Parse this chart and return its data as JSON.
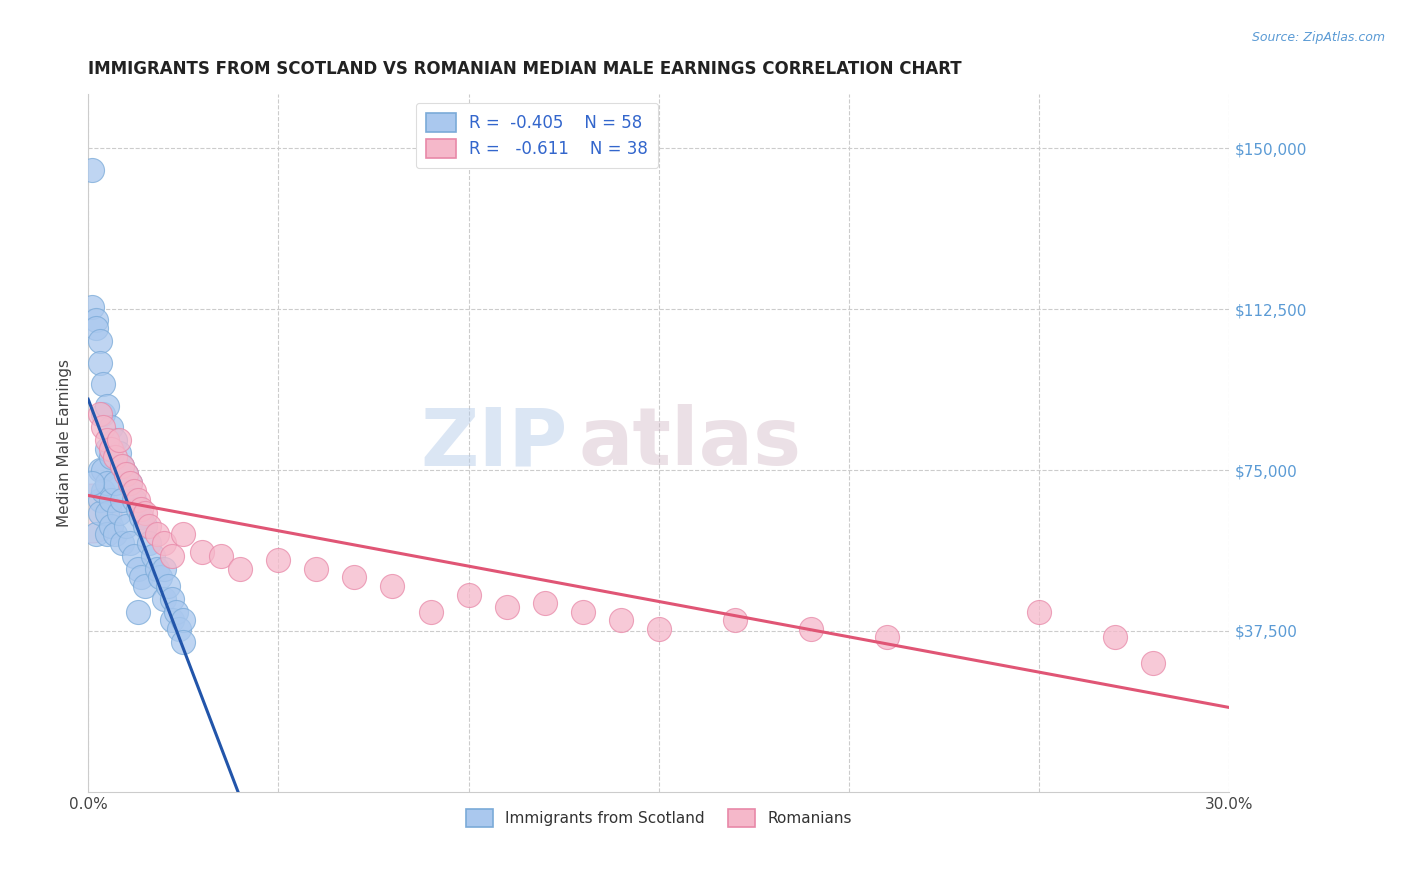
{
  "title": "IMMIGRANTS FROM SCOTLAND VS ROMANIAN MEDIAN MALE EARNINGS CORRELATION CHART",
  "source": "Source: ZipAtlas.com",
  "ylabel": "Median Male Earnings",
  "xlim": [
    0.0,
    0.3
  ],
  "ylim": [
    0,
    162500
  ],
  "yticks": [
    37500,
    75000,
    112500,
    150000
  ],
  "ytick_labels": [
    "$37,500",
    "$75,000",
    "$112,500",
    "$150,000"
  ],
  "xticks": [
    0.0,
    0.05,
    0.1,
    0.15,
    0.2,
    0.25,
    0.3
  ],
  "xtick_labels": [
    "0.0%",
    "",
    "",
    "",
    "",
    "",
    "30.0%"
  ],
  "grid_color": "#cccccc",
  "background_color": "#ffffff",
  "scotland_color": "#aac8ee",
  "scotland_edge_color": "#7aaad8",
  "romania_color": "#f5b8ca",
  "romania_edge_color": "#e888a8",
  "watermark_zip": "ZIP",
  "watermark_atlas": "atlas",
  "scotland_x": [
    0.001,
    0.001,
    0.002,
    0.002,
    0.002,
    0.003,
    0.003,
    0.003,
    0.003,
    0.003,
    0.004,
    0.004,
    0.004,
    0.004,
    0.005,
    0.005,
    0.005,
    0.005,
    0.005,
    0.006,
    0.006,
    0.006,
    0.006,
    0.007,
    0.007,
    0.007,
    0.008,
    0.008,
    0.009,
    0.009,
    0.009,
    0.01,
    0.01,
    0.011,
    0.011,
    0.012,
    0.012,
    0.013,
    0.013,
    0.014,
    0.014,
    0.015,
    0.015,
    0.016,
    0.017,
    0.018,
    0.019,
    0.02,
    0.02,
    0.021,
    0.022,
    0.022,
    0.023,
    0.024,
    0.025,
    0.025,
    0.001,
    0.013
  ],
  "scotland_y": [
    145000,
    113000,
    110000,
    108000,
    60000,
    105000,
    100000,
    75000,
    68000,
    65000,
    95000,
    88000,
    75000,
    70000,
    90000,
    80000,
    72000,
    65000,
    60000,
    85000,
    78000,
    68000,
    62000,
    82000,
    72000,
    60000,
    79000,
    65000,
    76000,
    68000,
    58000,
    74000,
    62000,
    72000,
    58000,
    68000,
    55000,
    66000,
    52000,
    64000,
    50000,
    62000,
    48000,
    58000,
    55000,
    52000,
    50000,
    52000,
    45000,
    48000,
    45000,
    40000,
    42000,
    38000,
    40000,
    35000,
    72000,
    42000
  ],
  "romania_x": [
    0.003,
    0.004,
    0.005,
    0.006,
    0.007,
    0.008,
    0.009,
    0.01,
    0.011,
    0.012,
    0.013,
    0.014,
    0.015,
    0.016,
    0.018,
    0.02,
    0.022,
    0.025,
    0.03,
    0.035,
    0.04,
    0.05,
    0.06,
    0.07,
    0.08,
    0.09,
    0.1,
    0.11,
    0.12,
    0.13,
    0.14,
    0.15,
    0.17,
    0.19,
    0.21,
    0.25,
    0.27,
    0.28
  ],
  "romania_y": [
    88000,
    85000,
    82000,
    80000,
    78000,
    82000,
    76000,
    74000,
    72000,
    70000,
    68000,
    66000,
    65000,
    62000,
    60000,
    58000,
    55000,
    60000,
    56000,
    55000,
    52000,
    54000,
    52000,
    50000,
    48000,
    42000,
    46000,
    43000,
    44000,
    42000,
    40000,
    38000,
    40000,
    38000,
    36000,
    42000,
    36000,
    30000
  ]
}
